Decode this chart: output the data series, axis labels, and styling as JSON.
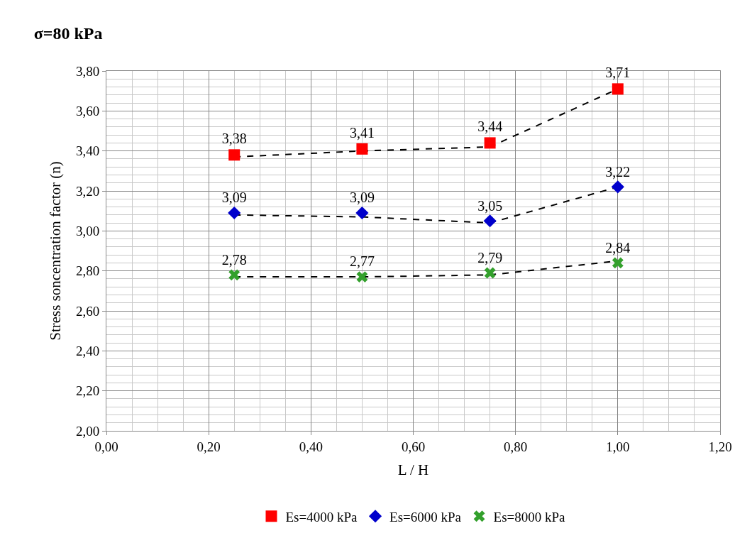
{
  "chart_data": {
    "type": "scatter",
    "title": "σ=80 kPa",
    "xlabel": "L / H",
    "ylabel": "Stress soncentration factor (n)",
    "xlim": [
      0,
      1.2
    ],
    "xticks": [
      {
        "value": 0,
        "label": "0,00"
      },
      {
        "value": 0.2,
        "label": "0,20"
      },
      {
        "value": 0.4,
        "label": "0,40"
      },
      {
        "value": 0.6,
        "label": "0,60"
      },
      {
        "value": 0.8,
        "label": "0,80"
      },
      {
        "value": 1.0,
        "label": "1,00"
      },
      {
        "value": 1.2,
        "label": "1,20"
      }
    ],
    "ylim": [
      2,
      3.8
    ],
    "yticks": [
      {
        "value": 2.0,
        "label": "2,00"
      },
      {
        "value": 2.2,
        "label": "2,20"
      },
      {
        "value": 2.4,
        "label": "2,40"
      },
      {
        "value": 2.6,
        "label": "2,60"
      },
      {
        "value": 2.8,
        "label": "2,80"
      },
      {
        "value": 3.0,
        "label": "3,00"
      },
      {
        "value": 3.2,
        "label": "3,20"
      },
      {
        "value": 3.4,
        "label": "3,40"
      },
      {
        "value": 3.6,
        "label": "3,60"
      },
      {
        "value": 3.8,
        "label": "3,80"
      }
    ],
    "grid": true,
    "legend": "bottom",
    "series": [
      {
        "name": "Es=4000 kPa",
        "type": "scatter",
        "color": "#ff0000",
        "marker": "square",
        "x": [
          0.25,
          0.5,
          0.75,
          1.0
        ],
        "values": [
          3.38,
          3.41,
          3.44,
          3.71
        ],
        "value_labels": [
          "3,38",
          "3,41",
          "3,44",
          "3,71"
        ]
      },
      {
        "name": "Es=6000 kPa",
        "type": "scatter",
        "color": "#0000cc",
        "marker": "diamond",
        "x": [
          0.25,
          0.5,
          0.75,
          1.0
        ],
        "values": [
          3.09,
          3.09,
          3.05,
          3.22
        ],
        "value_labels": [
          "3,09",
          "3,09",
          "3,05",
          "3,22"
        ]
      },
      {
        "name": "Es=8000 kPa",
        "color": "#33a02c",
        "marker": "cross",
        "x": [
          0.25,
          0.5,
          0.75,
          1.0
        ],
        "values": [
          2.78,
          2.77,
          2.79,
          2.84
        ],
        "value_labels": [
          "2,78",
          "2,77",
          "2,79",
          "2,84"
        ]
      },
      {
        "type": "line",
        "color": "#000000",
        "line_style": "dashed",
        "marker": "none",
        "x": [
          0.25,
          0.5,
          0.75,
          1.0
        ],
        "values": [
          3.37,
          3.4,
          3.42,
          3.71
        ]
      },
      {
        "type": "line",
        "color": "#000000",
        "line_style": "dashed",
        "marker": "none",
        "x": [
          0.25,
          0.5,
          0.75,
          1.0
        ],
        "values": [
          3.08,
          3.07,
          3.04,
          3.22
        ]
      },
      {
        "type": "line",
        "color": "#000000",
        "line_style": "dashed",
        "marker": "none",
        "x": [
          0.25,
          0.5,
          0.75,
          1.0
        ],
        "values": [
          2.77,
          2.77,
          2.78,
          2.85
        ]
      }
    ]
  }
}
